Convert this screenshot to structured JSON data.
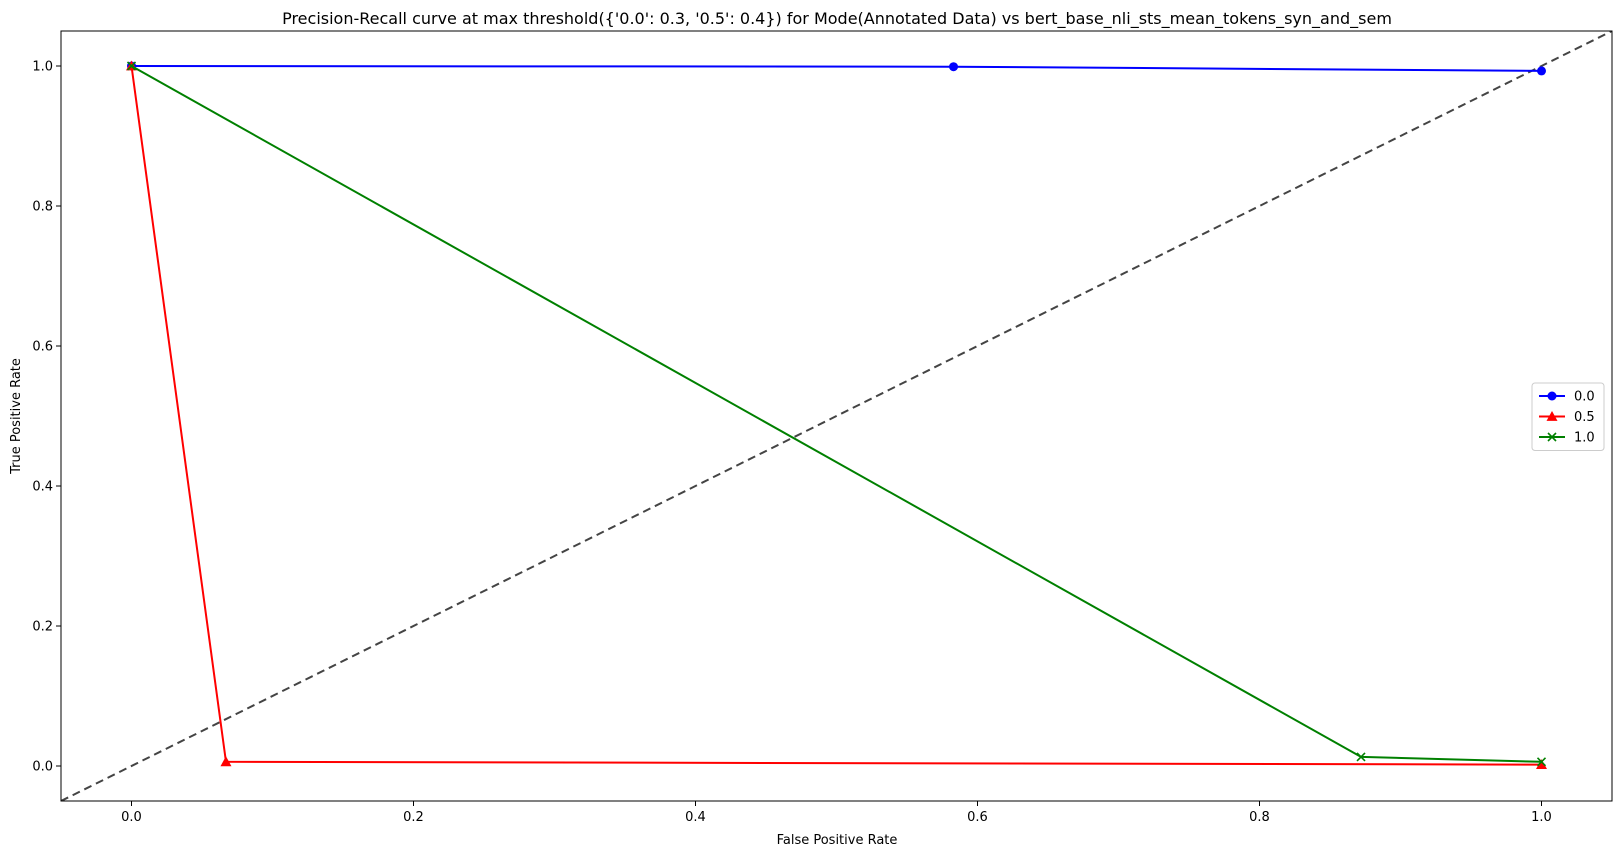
{
  "chart_data": {
    "type": "line",
    "title": "Precision-Recall curve at max threshold({'0.0': 0.3, '0.5': 0.4}) for Mode(Annotated Data) vs bert_base_nli_sts_mean_tokens_syn_and_sem",
    "xlabel": "False Positive Rate",
    "ylabel": "True Positive Rate",
    "xlim": [
      -0.05,
      1.05
    ],
    "ylim": [
      -0.05,
      1.05
    ],
    "xticks": [
      0.0,
      0.2,
      0.4,
      0.6,
      0.8,
      1.0
    ],
    "yticks": [
      0.0,
      0.2,
      0.4,
      0.6,
      0.8,
      1.0
    ],
    "tick_labels_x": [
      "0.0",
      "0.2",
      "0.4",
      "0.6",
      "0.8",
      "1.0"
    ],
    "tick_labels_y": [
      "0.0",
      "0.2",
      "0.4",
      "0.6",
      "0.8",
      "1.0"
    ],
    "grid": false,
    "legend_position": "center-right",
    "reference_line": {
      "x": [
        -0.05,
        1.05
      ],
      "y": [
        -0.05,
        1.05
      ],
      "style": "dashed",
      "color": "#444444"
    },
    "series": [
      {
        "name": "0.0",
        "color": "#0000ff",
        "marker": "circle",
        "x": [
          0.0,
          0.583,
          1.0
        ],
        "y": [
          1.0,
          0.999,
          0.993
        ]
      },
      {
        "name": "0.5",
        "color": "#ff0000",
        "marker": "triangle",
        "x": [
          0.0,
          0.067,
          1.0
        ],
        "y": [
          1.0,
          0.006,
          0.002
        ]
      },
      {
        "name": "1.0",
        "color": "#008000",
        "marker": "x",
        "x": [
          0.0,
          0.872,
          1.0
        ],
        "y": [
          1.0,
          0.013,
          0.006
        ]
      }
    ]
  }
}
